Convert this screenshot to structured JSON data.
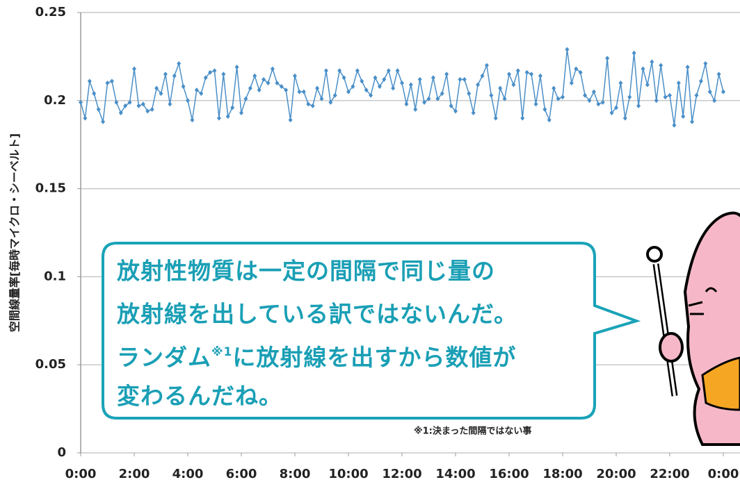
{
  "chart_data": {
    "type": "line",
    "ylabel": "空間線量率[毎時マイクロ・シーベルト]",
    "categories": [
      "0:00",
      null,
      null,
      null,
      null,
      null,
      null,
      null,
      null,
      null,
      null,
      null,
      "2:00",
      null,
      null,
      null,
      null,
      null,
      null,
      null,
      null,
      null,
      null,
      null,
      "4:00",
      null,
      null,
      null,
      null,
      null,
      null,
      null,
      null,
      null,
      null,
      null,
      "6:00",
      null,
      null,
      null,
      null,
      null,
      null,
      null,
      null,
      null,
      null,
      null,
      "8:00",
      null,
      null,
      null,
      null,
      null,
      null,
      null,
      null,
      null,
      null,
      null,
      "10:00",
      null,
      null,
      null,
      null,
      null,
      null,
      null,
      null,
      null,
      null,
      null,
      "12:00",
      null,
      null,
      null,
      null,
      null,
      null,
      null,
      null,
      null,
      null,
      null,
      "14:00",
      null,
      null,
      null,
      null,
      null,
      null,
      null,
      null,
      null,
      null,
      null,
      "16:00",
      null,
      null,
      null,
      null,
      null,
      null,
      null,
      null,
      null,
      null,
      null,
      "18:00",
      null,
      null,
      null,
      null,
      null,
      null,
      null,
      null,
      null,
      null,
      null,
      "20:00",
      null,
      null,
      null,
      null,
      null,
      null,
      null,
      null,
      null,
      null,
      null,
      "22:00",
      null,
      null,
      null,
      null,
      null,
      null,
      null,
      null,
      null,
      null,
      null,
      "0:00"
    ],
    "values": [
      0.199,
      0.19,
      0.211,
      0.204,
      0.195,
      0.188,
      0.21,
      0.211,
      0.199,
      0.193,
      0.197,
      0.199,
      0.218,
      0.197,
      0.198,
      0.194,
      0.195,
      0.207,
      0.204,
      0.215,
      0.198,
      0.214,
      0.221,
      0.208,
      0.2,
      0.189,
      0.206,
      0.204,
      0.213,
      0.216,
      0.217,
      0.19,
      0.215,
      0.191,
      0.196,
      0.219,
      0.193,
      0.201,
      0.207,
      0.214,
      0.206,
      0.212,
      0.21,
      0.218,
      0.21,
      0.208,
      0.206,
      0.189,
      0.214,
      0.205,
      0.205,
      0.198,
      0.197,
      0.207,
      0.201,
      0.217,
      0.199,
      0.203,
      0.217,
      0.213,
      0.205,
      0.208,
      0.217,
      0.211,
      0.206,
      0.203,
      0.213,
      0.208,
      0.212,
      0.217,
      0.207,
      0.217,
      0.21,
      0.198,
      0.209,
      0.195,
      0.212,
      0.199,
      0.201,
      0.213,
      0.201,
      0.204,
      0.215,
      0.197,
      0.194,
      0.212,
      0.212,
      0.204,
      0.193,
      0.209,
      0.214,
      0.22,
      0.203,
      0.19,
      0.207,
      0.201,
      0.215,
      0.209,
      0.217,
      0.19,
      0.216,
      0.215,
      0.198,
      0.214,
      0.195,
      0.189,
      0.207,
      0.201,
      0.202,
      0.229,
      0.21,
      0.218,
      0.216,
      0.203,
      0.2,
      0.205,
      0.198,
      0.199,
      0.224,
      0.193,
      0.196,
      0.21,
      0.19,
      0.202,
      0.227,
      0.197,
      0.218,
      0.209,
      0.222,
      0.2,
      0.22,
      0.202,
      0.203,
      0.186,
      0.21,
      0.191,
      0.219,
      0.188,
      0.203,
      0.211,
      0.221,
      0.205,
      0.2,
      0.215,
      0.205
    ],
    "color": "#4a8fc8",
    "ylim": [
      0,
      0.25
    ],
    "yticks": [
      0,
      0.05,
      0.1,
      0.15,
      0.2,
      0.25
    ],
    "grid": true
  },
  "bubble": {
    "line1": "放射性物質は一定の間隔で同じ量の",
    "line2": "放射線を出している訳ではないんだ。",
    "line3": [
      "ランダム",
      "※1",
      "に放射線を出すから数値が"
    ],
    "line4": "変わるんだね。"
  },
  "footnote": "※1:決まった間隔ではない事"
}
